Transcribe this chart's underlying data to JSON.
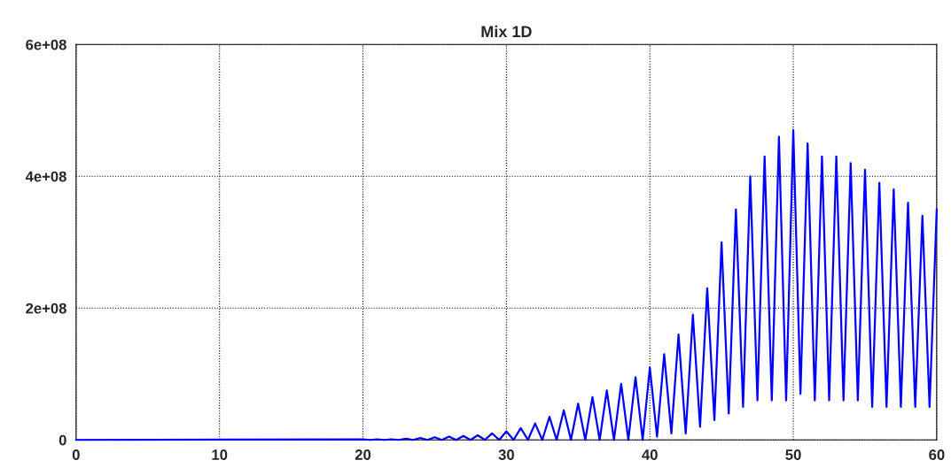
{
  "chart_data": {
    "type": "line",
    "title": "Mix 1D",
    "x": [
      0,
      20,
      20.5,
      21,
      21.5,
      22,
      22.5,
      23,
      23.5,
      24,
      24.5,
      25,
      25.5,
      26,
      26.5,
      27,
      27.5,
      28,
      28.5,
      29,
      29.5,
      30,
      30.5,
      31,
      31.5,
      32,
      32.5,
      33,
      33.5,
      34,
      34.5,
      35,
      35.5,
      36,
      36.5,
      37,
      37.5,
      38,
      38.5,
      39,
      39.5,
      40,
      40.5,
      41,
      41.5,
      42,
      42.5,
      43,
      43.5,
      44,
      44.5,
      45,
      45.5,
      46,
      46.5,
      47,
      47.5,
      48,
      48.5,
      49,
      49.5,
      50,
      50.5,
      51,
      51.5,
      52,
      52.5,
      53,
      53.5,
      54,
      54.5,
      55,
      55.5,
      56,
      56.5,
      57,
      57.5,
      58,
      58.5,
      59,
      59.5,
      60
    ],
    "series": [
      {
        "color": "#0000ff",
        "values": [
          0,
          1000000.0,
          0,
          1000000.0,
          0,
          1000000.0,
          0,
          2000000.0,
          0,
          3000000.0,
          0,
          4000000.0,
          0,
          5000000.0,
          0,
          6000000.0,
          0,
          7000000.0,
          0,
          10000000.0,
          0,
          13000000.0,
          0,
          18000000.0,
          0,
          25000000.0,
          0,
          35000000.0,
          0,
          45000000.0,
          0,
          55000000.0,
          0,
          65000000.0,
          0,
          75000000.0,
          0,
          85000000.0,
          0,
          95000000.0,
          0,
          110000000.0,
          5000000.0,
          130000000.0,
          10000000.0,
          160000000.0,
          10000000.0,
          190000000.0,
          20000000.0,
          230000000.0,
          30000000.0,
          300000000.0,
          40000000.0,
          350000000.0,
          50000000.0,
          400000000.0,
          60000000.0,
          430000000.0,
          60000000.0,
          460000000.0,
          60000000.0,
          470000000.0,
          70000000.0,
          450000000.0,
          60000000.0,
          430000000.0,
          60000000.0,
          430000000.0,
          60000000.0,
          420000000.0,
          60000000.0,
          410000000.0,
          50000000.0,
          390000000.0,
          50000000.0,
          380000000.0,
          50000000.0,
          360000000.0,
          50000000.0,
          340000000.0,
          50000000.0,
          350000000.0
        ]
      }
    ],
    "xlim": [
      0,
      60
    ],
    "xticks": [
      0,
      10,
      20,
      30,
      40,
      50,
      60
    ],
    "ylim": [
      0,
      600000000
    ],
    "yticks": [
      0,
      {
        "value": 200000000,
        "label": "2e+08"
      },
      {
        "value": 400000000,
        "label": "4e+08"
      },
      {
        "value": 600000000,
        "label": "6e+08"
      }
    ],
    "grid": true,
    "line_style": "solid"
  }
}
